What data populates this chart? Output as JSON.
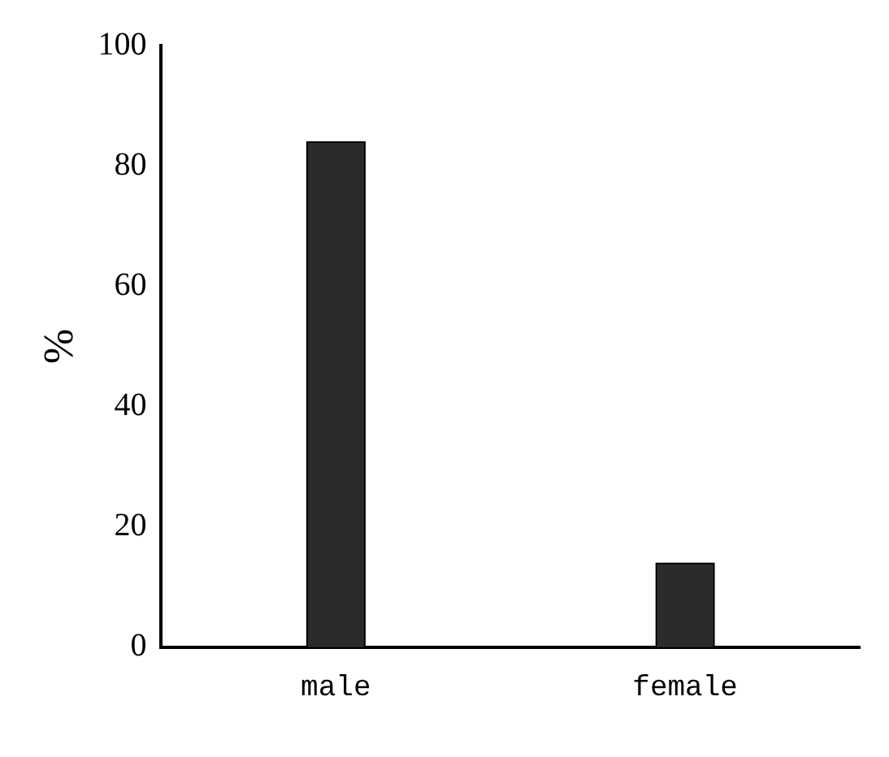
{
  "chart_data": {
    "type": "bar",
    "ylabel": "%",
    "categories": [
      "male",
      "female"
    ],
    "values": [
      84,
      14
    ],
    "color": "#2b2b2b",
    "ylim": [
      0,
      100
    ],
    "yticks": [
      0,
      20,
      40,
      60,
      80,
      100
    ],
    "grid": false,
    "legend": false
  }
}
